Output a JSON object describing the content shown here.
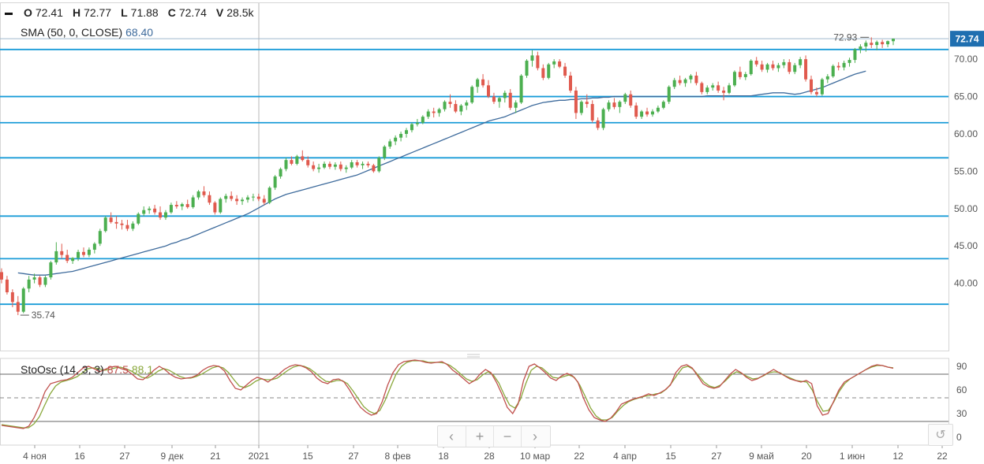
{
  "ohlcv": {
    "o_label": "O",
    "o_value": "72.41",
    "h_label": "H",
    "h_value": "72.77",
    "l_label": "L",
    "l_value": "71.88",
    "c_label": "C",
    "c_value": "72.74",
    "v_label": "V",
    "v_value": "28.5k"
  },
  "sma": {
    "label": "SMA (50, 0, CLOSE)",
    "value": "68.40"
  },
  "stoch": {
    "label": "StoOsc (14, 3, 3)",
    "k_value": "87.5",
    "d_value": "88.1"
  },
  "colors": {
    "up": "#4caf50",
    "down": "#e05a4e",
    "sma": "#3e6b9c",
    "hline": "#1a9cd8",
    "stoch_k": "#c0504d",
    "stoch_d": "#8aa83c",
    "price_tag": "#1f6fb0"
  },
  "icons": {
    "prev": "chevron-left-icon",
    "zoom_in": "plus-icon",
    "zoom_out": "minus-icon",
    "next": "chevron-right-icon",
    "reset": "reset-icon"
  },
  "nav": {
    "prev": "‹",
    "zoom_in": "+",
    "zoom_out": "−",
    "next": "›",
    "reset": "↺"
  },
  "chart_data": {
    "type": "candlestick",
    "price_axis": {
      "ylim": [
        31.0,
        77.5
      ],
      "ticks": [
        "70.00",
        "65.00",
        "60.00",
        "55.00",
        "50.00",
        "45.00",
        "40.00"
      ]
    },
    "stoch_axis": {
      "ylim": [
        -10,
        100
      ],
      "ticks": [
        "90",
        "60",
        "30",
        "0"
      ],
      "levels": [
        80,
        50,
        20
      ]
    },
    "x_ticks": [
      "4 ноя",
      "16",
      "27",
      "9 дек",
      "21",
      "2021",
      "15",
      "27",
      "8 фев",
      "18",
      "28",
      "10 мар",
      "22",
      "4 апр",
      "15",
      "27",
      "9 май",
      "20",
      "1 июн",
      "12",
      "22"
    ],
    "last_price": "72.74",
    "high_marker": "72.93",
    "low_marker": "35.74",
    "horizontal_levels": [
      71.3,
      65.0,
      61.5,
      56.8,
      49.0,
      43.3,
      37.2
    ],
    "candles": [
      [
        41.5,
        42,
        40,
        40.5
      ],
      [
        40.5,
        41,
        38.5,
        38.8
      ],
      [
        38.8,
        39.2,
        36.8,
        37.5
      ],
      [
        37.5,
        38.3,
        35.74,
        36.2
      ],
      [
        36.2,
        39.5,
        36,
        39.3
      ],
      [
        39.3,
        41,
        38.8,
        40.5
      ],
      [
        40.5,
        41.3,
        40,
        40.8
      ],
      [
        40.8,
        41,
        39.5,
        39.8
      ],
      [
        39.8,
        41,
        39.5,
        40.8
      ],
      [
        40.8,
        43,
        40.5,
        42.8
      ],
      [
        42.8,
        45.5,
        42.5,
        44.3
      ],
      [
        44.3,
        45.3,
        43.3,
        43.8
      ],
      [
        43.8,
        44.5,
        42.7,
        43
      ],
      [
        43,
        43.5,
        42.6,
        43.4
      ],
      [
        43.4,
        44.5,
        43,
        44.2
      ],
      [
        44.2,
        44.8,
        43.5,
        43.8
      ],
      [
        43.8,
        44.8,
        43.5,
        44.5
      ],
      [
        44.5,
        45.5,
        44,
        45.3
      ],
      [
        45.3,
        47.3,
        45,
        47
      ],
      [
        47,
        49,
        46.8,
        48.8
      ],
      [
        48.8,
        49.5,
        48,
        48.2
      ],
      [
        48.2,
        49,
        47.3,
        48
      ],
      [
        48,
        48.5,
        47.2,
        47.8
      ],
      [
        47.8,
        48.5,
        47,
        47.3
      ],
      [
        47.3,
        48.3,
        47,
        48
      ],
      [
        48,
        49.5,
        47.8,
        49.3
      ],
      [
        49.3,
        50.3,
        49,
        49.8
      ],
      [
        49.8,
        50.3,
        49.3,
        50
      ],
      [
        50,
        50.5,
        49.2,
        49.5
      ],
      [
        49.5,
        50.3,
        48.5,
        48.8
      ],
      [
        48.8,
        49.8,
        48.5,
        49.5
      ],
      [
        49.5,
        50.8,
        49.3,
        50.5
      ],
      [
        50.5,
        51,
        50,
        50.3
      ],
      [
        50.3,
        50.8,
        49.8,
        50.6
      ],
      [
        50.6,
        51.2,
        50,
        50.2
      ],
      [
        50.2,
        51.8,
        50,
        51.5
      ],
      [
        51.5,
        52.5,
        51.2,
        52.3
      ],
      [
        52.3,
        53,
        51.5,
        51.8
      ],
      [
        51.8,
        52.3,
        50.5,
        50.8
      ],
      [
        50.8,
        51,
        49.2,
        49.5
      ],
      [
        49.5,
        51.5,
        49.3,
        51.3
      ],
      [
        51.3,
        52,
        50.8,
        51.7
      ],
      [
        51.7,
        52.3,
        51,
        51.3
      ],
      [
        51.3,
        51.8,
        50.5,
        51
      ],
      [
        51,
        51.5,
        50.5,
        51.2
      ],
      [
        51.2,
        51.8,
        50.8,
        51.5
      ],
      [
        51.5,
        52,
        51,
        51.6
      ],
      [
        51.6,
        52,
        51,
        51.3
      ],
      [
        51.3,
        51.8,
        50.5,
        50.8
      ],
      [
        50.8,
        53,
        50.6,
        52.8
      ],
      [
        52.8,
        54.5,
        52.5,
        54.3
      ],
      [
        54.3,
        55.5,
        54,
        55.3
      ],
      [
        55.3,
        56.8,
        55,
        56.5
      ],
      [
        56.5,
        57,
        55.8,
        56
      ],
      [
        56,
        57.2,
        55.8,
        57
      ],
      [
        57,
        57.8,
        56.3,
        56.5
      ],
      [
        56.5,
        57,
        55.5,
        55.8
      ],
      [
        55.8,
        56.3,
        55,
        55.3
      ],
      [
        55.3,
        56,
        54.8,
        55.5
      ],
      [
        55.5,
        56.3,
        55.3,
        56
      ],
      [
        56,
        56.3,
        55.3,
        55.6
      ],
      [
        55.6,
        56.2,
        55.2,
        55.9
      ],
      [
        55.9,
        56.3,
        55,
        55.3
      ],
      [
        55.3,
        55.8,
        54.8,
        55.5
      ],
      [
        55.5,
        56.5,
        55.3,
        56.2
      ],
      [
        56.2,
        56.5,
        55.5,
        55.8
      ],
      [
        55.8,
        56.3,
        55.3,
        56
      ],
      [
        56,
        56.3,
        55.5,
        55.8
      ],
      [
        55.8,
        56,
        54.8,
        55
      ],
      [
        55,
        57,
        54.8,
        56.8
      ],
      [
        56.8,
        58.5,
        56.5,
        58.3
      ],
      [
        58.3,
        59.3,
        58,
        59
      ],
      [
        59,
        59.8,
        58.5,
        59.5
      ],
      [
        59.5,
        60.3,
        59,
        60
      ],
      [
        60,
        60.8,
        59.5,
        60.5
      ],
      [
        60.5,
        61.5,
        60.2,
        61.3
      ],
      [
        61.3,
        62,
        61,
        61.5
      ],
      [
        61.5,
        62.5,
        61.3,
        62.3
      ],
      [
        62.3,
        63.3,
        62,
        63
      ],
      [
        63,
        63.5,
        62.2,
        62.8
      ],
      [
        62.8,
        63.5,
        62.3,
        63.3
      ],
      [
        63.3,
        64.5,
        63,
        64.3
      ],
      [
        64.3,
        65.3,
        63.5,
        64
      ],
      [
        64,
        64.5,
        62.8,
        63
      ],
      [
        63,
        64,
        62.5,
        63.8
      ],
      [
        63.8,
        64.5,
        63.2,
        64.2
      ],
      [
        64.2,
        66.5,
        64,
        66.3
      ],
      [
        66.3,
        67.5,
        65.5,
        67.3
      ],
      [
        67.3,
        68,
        66.2,
        66.5
      ],
      [
        66.5,
        67.2,
        64.8,
        65
      ],
      [
        65,
        65.5,
        64,
        64.3
      ],
      [
        64.3,
        65,
        63.5,
        64.8
      ],
      [
        64.8,
        65.8,
        64.2,
        65.5
      ],
      [
        65.5,
        66,
        63.2,
        63.5
      ],
      [
        63.5,
        64.5,
        62.8,
        64.2
      ],
      [
        64.2,
        68,
        64,
        67.8
      ],
      [
        67.8,
        70,
        67.5,
        69.8
      ],
      [
        69.8,
        71.2,
        69,
        70.5
      ],
      [
        70.5,
        71,
        68.5,
        68.8
      ],
      [
        68.8,
        69.3,
        67.2,
        67.5
      ],
      [
        67.5,
        69.5,
        67.3,
        69.3
      ],
      [
        69.3,
        70,
        68.8,
        69.7
      ],
      [
        69.7,
        70,
        68.8,
        69
      ],
      [
        69,
        69.5,
        67.5,
        67.8
      ],
      [
        67.8,
        68.3,
        65.5,
        65.8
      ],
      [
        65.8,
        66.3,
        62,
        62.8
      ],
      [
        62.8,
        64.5,
        62.5,
        64.3
      ],
      [
        64.3,
        65.3,
        63.5,
        64
      ],
      [
        64,
        64.5,
        61.5,
        61.8
      ],
      [
        61.8,
        62.2,
        60.5,
        60.8
      ],
      [
        60.8,
        63.5,
        60.5,
        63.3
      ],
      [
        63.3,
        64.5,
        63,
        64.2
      ],
      [
        64.2,
        64.8,
        63.3,
        63.6
      ],
      [
        63.6,
        64.5,
        62.8,
        64.3
      ],
      [
        64.3,
        65.5,
        64,
        65.3
      ],
      [
        65.3,
        65.8,
        63.5,
        63.8
      ],
      [
        63.8,
        64.2,
        62,
        62.3
      ],
      [
        62.3,
        63.2,
        62,
        63
      ],
      [
        63,
        63.5,
        62.3,
        62.6
      ],
      [
        62.6,
        63.3,
        62.3,
        63
      ],
      [
        63,
        63.8,
        62.8,
        63.5
      ],
      [
        63.5,
        64.5,
        63.3,
        64.3
      ],
      [
        64.3,
        66.5,
        64,
        66.3
      ],
      [
        66.3,
        67.5,
        66,
        67.2
      ],
      [
        67.2,
        67.8,
        66.5,
        66.8
      ],
      [
        66.8,
        67.5,
        66.3,
        67.3
      ],
      [
        67.3,
        68,
        66.8,
        67.8
      ],
      [
        67.8,
        68.3,
        66.5,
        66.8
      ],
      [
        66.8,
        67,
        65.3,
        65.6
      ],
      [
        65.6,
        66.5,
        65.3,
        66.2
      ],
      [
        66.2,
        66.8,
        65.8,
        66.5
      ],
      [
        66.5,
        67,
        65.5,
        65.8
      ],
      [
        65.8,
        66.3,
        64.5,
        65.5
      ],
      [
        65.5,
        66.8,
        65.3,
        66.5
      ],
      [
        66.5,
        68.5,
        66.3,
        68.3
      ],
      [
        68.3,
        69,
        67.3,
        67.6
      ],
      [
        67.6,
        68.3,
        67.2,
        68
      ],
      [
        68,
        70,
        67.8,
        69.8
      ],
      [
        69.8,
        70.3,
        69,
        69.3
      ],
      [
        69.3,
        69.8,
        68.3,
        68.6
      ],
      [
        68.6,
        69.5,
        68.2,
        69.3
      ],
      [
        69.3,
        69.8,
        68.5,
        68.8
      ],
      [
        68.8,
        69.5,
        68.3,
        69.2
      ],
      [
        69.2,
        70,
        68.8,
        69.6
      ],
      [
        69.6,
        70,
        68,
        68.3
      ],
      [
        68.3,
        69.5,
        68,
        69.2
      ],
      [
        69.2,
        70.3,
        68.8,
        70
      ],
      [
        70,
        70.5,
        67,
        67.3
      ],
      [
        67.3,
        67.8,
        65.3,
        65.6
      ],
      [
        65.6,
        66.2,
        65,
        65.3
      ],
      [
        65.3,
        67.5,
        65.1,
        67.3
      ],
      [
        67.3,
        68,
        66.8,
        67.7
      ],
      [
        67.7,
        69.3,
        67.5,
        69.1
      ],
      [
        69.1,
        69.6,
        68.5,
        68.9
      ],
      [
        68.9,
        69.8,
        68.5,
        69.5
      ],
      [
        69.5,
        70.2,
        69,
        69.9
      ],
      [
        69.9,
        71.5,
        69.5,
        71.3
      ],
      [
        71.3,
        72,
        70.8,
        71.7
      ],
      [
        71.7,
        72.5,
        71,
        72.2
      ],
      [
        72.2,
        72.93,
        71.5,
        71.9
      ],
      [
        71.9,
        72.5,
        71.2,
        72.3
      ],
      [
        72.3,
        72.6,
        71.5,
        72
      ],
      [
        72,
        72.5,
        71.6,
        72.41
      ],
      [
        72.41,
        72.77,
        71.88,
        72.74
      ]
    ],
    "sma_values": [
      null,
      null,
      null,
      41.4,
      41.3,
      41.2,
      41.1,
      41.1,
      41.1,
      41.2,
      41.3,
      41.4,
      41.5,
      41.6,
      41.8,
      42,
      42.2,
      42.4,
      42.6,
      42.8,
      43,
      43.2,
      43.4,
      43.6,
      43.8,
      44,
      44.2,
      44.4,
      44.6,
      44.8,
      45,
      45.3,
      45.5,
      45.8,
      46,
      46.3,
      46.6,
      46.9,
      47.2,
      47.5,
      47.8,
      48.1,
      48.4,
      48.7,
      49,
      49.3,
      49.7,
      50.1,
      50.5,
      50.9,
      51.3,
      51.6,
      51.9,
      52.1,
      52.3,
      52.5,
      52.7,
      52.9,
      53.1,
      53.3,
      53.5,
      53.7,
      53.9,
      54.1,
      54.3,
      54.5,
      54.8,
      55.1,
      55.4,
      55.7,
      56,
      56.3,
      56.6,
      56.9,
      57.2,
      57.5,
      57.8,
      58.1,
      58.4,
      58.7,
      59,
      59.3,
      59.6,
      59.9,
      60.2,
      60.5,
      60.8,
      61.1,
      61.4,
      61.7,
      61.9,
      62.1,
      62.3,
      62.6,
      62.9,
      63.2,
      63.5,
      63.8,
      64.0,
      64.2,
      64.3,
      64.4,
      64.5,
      64.5,
      64.6,
      64.6,
      64.7,
      64.7,
      64.8,
      64.8,
      64.9,
      64.9,
      65.0,
      65.0,
      65.0,
      65.0,
      65.0,
      65.0,
      65.0,
      65.0,
      65.0,
      65.0,
      65.0,
      65.0,
      65.0,
      65.0,
      65.0,
      65.0,
      65.0,
      65.1,
      65.1,
      65.1,
      65.1,
      65.1,
      65.1,
      65.1,
      65.1,
      65.1,
      65.2,
      65.3,
      65.4,
      65.5,
      65.5,
      65.5,
      65.4,
      65.3,
      65.4,
      65.6,
      65.8,
      66.0,
      66.2,
      66.5,
      66.8,
      67.1,
      67.4,
      67.7,
      68.0,
      68.2,
      68.4
    ],
    "stoch_k": [
      15,
      14,
      13,
      12,
      11,
      14,
      25,
      40,
      58,
      68,
      70,
      72,
      73,
      76,
      82,
      88,
      90,
      87,
      83,
      86,
      89,
      90,
      87,
      85,
      80,
      74,
      73,
      78,
      85,
      90,
      86,
      80,
      76,
      74,
      75,
      76,
      79,
      85,
      89,
      91,
      90,
      84,
      72,
      62,
      60,
      66,
      72,
      76,
      74,
      70,
      75,
      80,
      86,
      90,
      92,
      91,
      88,
      83,
      75,
      70,
      68,
      73,
      74,
      70,
      60,
      48,
      38,
      32,
      28,
      30,
      45,
      66,
      82,
      92,
      96,
      97,
      98,
      97,
      95,
      94,
      95,
      96,
      92,
      85,
      80,
      74,
      68,
      72,
      80,
      86,
      82,
      70,
      55,
      38,
      30,
      42,
      72,
      90,
      93,
      88,
      82,
      75,
      72,
      78,
      81,
      78,
      70,
      50,
      35,
      25,
      22,
      20,
      24,
      32,
      42,
      45,
      48,
      50,
      52,
      55,
      53,
      56,
      60,
      66,
      82,
      90,
      92,
      88,
      78,
      68,
      64,
      62,
      64,
      72,
      80,
      86,
      82,
      76,
      72,
      74,
      78,
      82,
      86,
      82,
      78,
      74,
      72,
      70,
      72,
      68,
      40,
      28,
      30,
      45,
      60,
      70,
      74,
      78,
      82,
      86,
      90,
      92,
      91,
      89,
      87.5
    ],
    "stoch_d": [
      16,
      15,
      14,
      13,
      12,
      12,
      17,
      26,
      41,
      55,
      65,
      70,
      72,
      74,
      77,
      82,
      87,
      88,
      87,
      85,
      86,
      88,
      89,
      87,
      84,
      80,
      76,
      75,
      79,
      84,
      87,
      85,
      81,
      77,
      75,
      75,
      77,
      80,
      84,
      88,
      90,
      88,
      82,
      73,
      65,
      63,
      66,
      71,
      74,
      73,
      73,
      75,
      80,
      85,
      89,
      91,
      90,
      87,
      82,
      76,
      71,
      70,
      72,
      72,
      68,
      59,
      49,
      39,
      33,
      30,
      34,
      47,
      64,
      80,
      90,
      95,
      97,
      97,
      97,
      95,
      95,
      95,
      94,
      91,
      86,
      80,
      74,
      71,
      73,
      79,
      83,
      79,
      69,
      54,
      41,
      37,
      48,
      68,
      85,
      90,
      88,
      82,
      76,
      75,
      77,
      79,
      76,
      66,
      52,
      37,
      27,
      22,
      22,
      25,
      33,
      40,
      45,
      48,
      50,
      52,
      53,
      55,
      56,
      61,
      69,
      79,
      88,
      90,
      86,
      78,
      70,
      65,
      63,
      66,
      72,
      79,
      83,
      81,
      77,
      74,
      75,
      78,
      82,
      83,
      82,
      78,
      75,
      72,
      71,
      70,
      60,
      45,
      33,
      34,
      45,
      58,
      68,
      74,
      78,
      82,
      86,
      89,
      91,
      91,
      89,
      88.1
    ]
  }
}
